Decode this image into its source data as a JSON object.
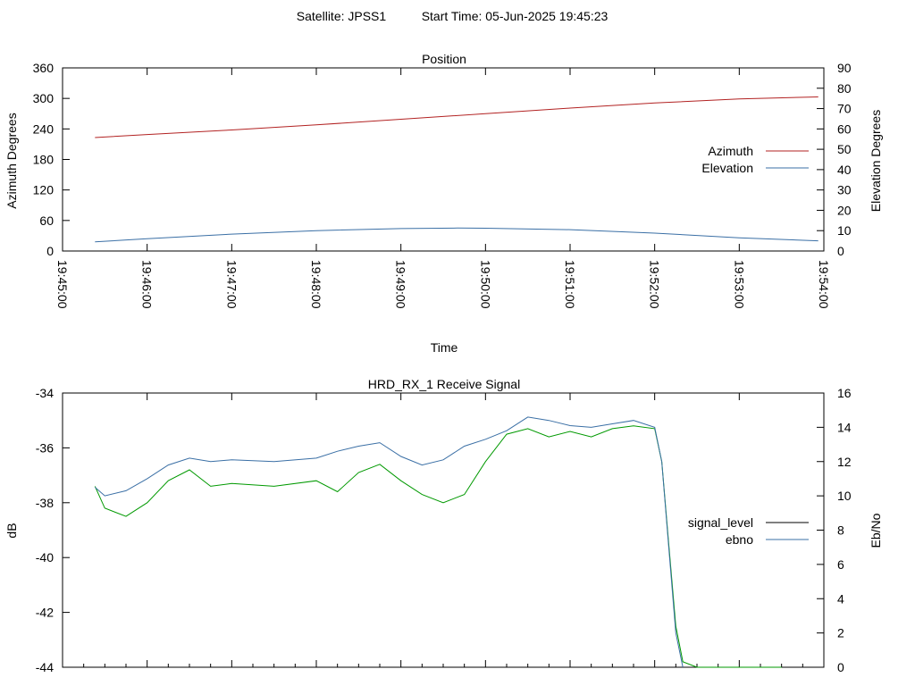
{
  "header": {
    "satellite": "Satellite: JPSS1",
    "start_time": "Start Time: 05-Jun-2025 19:45:23"
  },
  "chart_data": [
    {
      "type": "line",
      "title": "Position",
      "xlabel": "Time",
      "ylabel": "Azimuth Degrees",
      "y2label": "Elevation Degrees",
      "xlim": [
        "19:45:00",
        "19:54:00"
      ],
      "x_ticks": [
        "19:45:00",
        "19:46:00",
        "19:47:00",
        "19:48:00",
        "19:49:00",
        "19:50:00",
        "19:51:00",
        "19:52:00",
        "19:53:00",
        "19:54:00"
      ],
      "ylim": [
        0,
        360
      ],
      "y_ticks": [
        "0",
        "60",
        "120",
        "180",
        "240",
        "300",
        "360"
      ],
      "y2lim": [
        0,
        90
      ],
      "y2_ticks": [
        "0",
        "10",
        "20",
        "30",
        "40",
        "50",
        "60",
        "70",
        "80",
        "90"
      ],
      "legend_position": "right",
      "grid": false,
      "series": [
        {
          "name": "Azimuth",
          "axis": "y",
          "color": "#b22222",
          "x": [
            "19:45:23",
            "19:46:00",
            "19:47:00",
            "19:48:00",
            "19:49:00",
            "19:50:00",
            "19:51:00",
            "19:52:00",
            "19:53:00",
            "19:53:56"
          ],
          "y": [
            223,
            229,
            238,
            248,
            259,
            270,
            281,
            291,
            299,
            303
          ]
        },
        {
          "name": "Elevation",
          "axis": "y2",
          "color": "#3a6fa5",
          "x": [
            "19:45:23",
            "19:46:00",
            "19:47:00",
            "19:48:00",
            "19:49:00",
            "19:49:40",
            "19:50:00",
            "19:51:00",
            "19:52:00",
            "19:53:00",
            "19:53:56"
          ],
          "y": [
            4.5,
            6.0,
            8.3,
            10.0,
            11.0,
            11.3,
            11.2,
            10.5,
            8.8,
            6.5,
            5.0
          ]
        }
      ]
    },
    {
      "type": "line",
      "title": "HRD_RX_1 Receive Signal",
      "xlabel": "",
      "ylabel": "dB",
      "y2label": "Eb/No",
      "xlim": [
        "19:45:00",
        "19:54:00"
      ],
      "ylim": [
        -44,
        -34
      ],
      "y_ticks": [
        "-34",
        "-36",
        "-38",
        "-40",
        "-42",
        "-44"
      ],
      "y2lim": [
        0,
        16
      ],
      "y2_ticks": [
        "0",
        "2",
        "4",
        "6",
        "8",
        "10",
        "12",
        "14",
        "16"
      ],
      "legend_position": "right",
      "grid": false,
      "series": [
        {
          "name": "signal_level",
          "axis": "y",
          "color": "#009900",
          "x": [
            "19:45:23",
            "19:45:30",
            "19:45:45",
            "19:46:00",
            "19:46:15",
            "19:46:30",
            "19:46:45",
            "19:47:00",
            "19:47:30",
            "19:48:00",
            "19:48:15",
            "19:48:30",
            "19:48:45",
            "19:49:00",
            "19:49:15",
            "19:49:30",
            "19:49:45",
            "19:50:00",
            "19:50:15",
            "19:50:30",
            "19:50:45",
            "19:51:00",
            "19:51:15",
            "19:51:30",
            "19:51:45",
            "19:52:00",
            "19:52:05",
            "19:52:10",
            "19:52:15",
            "19:52:20",
            "19:52:30",
            "19:53:00",
            "19:53:30"
          ],
          "y": [
            -37.4,
            -38.2,
            -38.5,
            -38.0,
            -37.2,
            -36.8,
            -37.4,
            -37.3,
            -37.4,
            -37.2,
            -37.6,
            -36.9,
            -36.6,
            -37.2,
            -37.7,
            -38.0,
            -37.7,
            -36.5,
            -35.5,
            -35.3,
            -35.6,
            -35.4,
            -35.6,
            -35.3,
            -35.2,
            -35.3,
            -36.5,
            -39.5,
            -42.5,
            -43.8,
            -44.0,
            -44.0,
            -44.0
          ]
        },
        {
          "name": "ebno",
          "axis": "y2",
          "color": "#3a6fa5",
          "x": [
            "19:45:23",
            "19:45:30",
            "19:45:45",
            "19:46:00",
            "19:46:15",
            "19:46:30",
            "19:46:45",
            "19:47:00",
            "19:47:30",
            "19:48:00",
            "19:48:15",
            "19:48:30",
            "19:48:45",
            "19:49:00",
            "19:49:15",
            "19:49:30",
            "19:49:45",
            "19:50:00",
            "19:50:15",
            "19:50:30",
            "19:50:45",
            "19:51:00",
            "19:51:15",
            "19:51:30",
            "19:51:45",
            "19:52:00",
            "19:52:05",
            "19:52:10",
            "19:52:15",
            "19:52:20"
          ],
          "y": [
            10.5,
            10.0,
            10.3,
            11.0,
            11.8,
            12.2,
            12.0,
            12.1,
            12.0,
            12.2,
            12.6,
            12.9,
            13.1,
            12.3,
            11.8,
            12.1,
            12.9,
            13.3,
            13.8,
            14.6,
            14.4,
            14.1,
            14.0,
            14.2,
            14.4,
            14.0,
            12.0,
            7.0,
            2.0,
            0.0
          ]
        }
      ]
    }
  ]
}
